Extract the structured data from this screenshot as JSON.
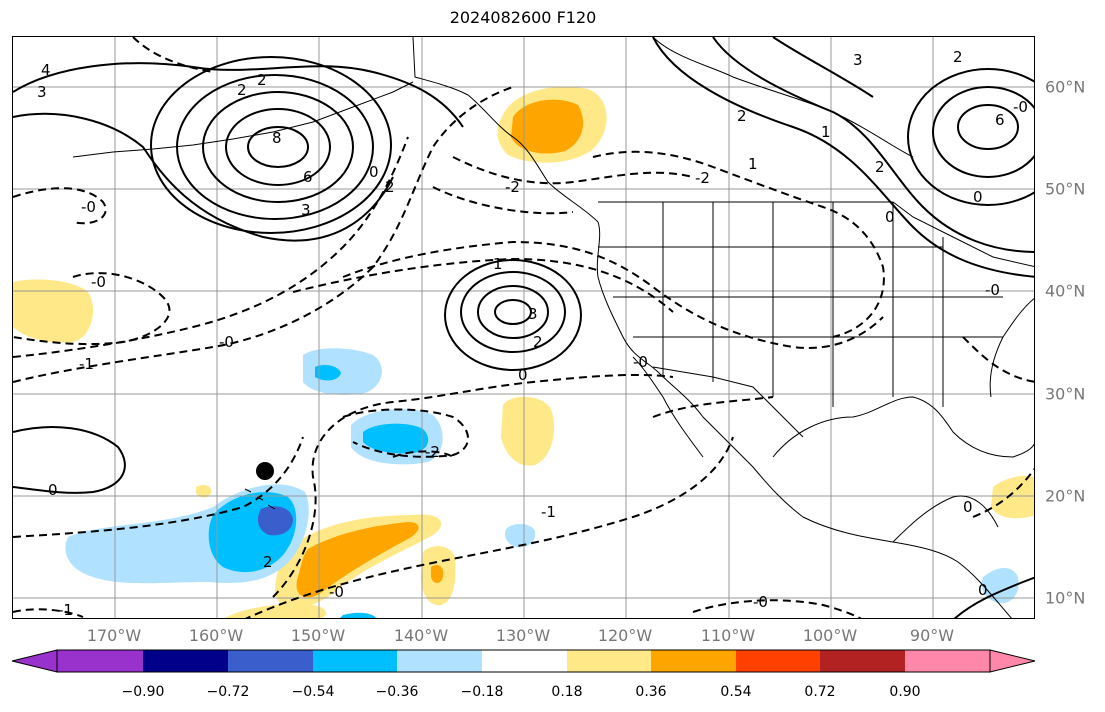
{
  "title": "2024082600 F120",
  "map": {
    "lon_labels": [
      "170°W",
      "160°W",
      "150°W",
      "140°W",
      "130°W",
      "120°W",
      "110°W",
      "100°W",
      "90°W"
    ],
    "lat_labels": [
      "60°N",
      "50°N",
      "40°N",
      "30°N",
      "20°N",
      "10°N"
    ],
    "gridline_color": "#999999",
    "contour_style": {
      "positive": "solid",
      "negative": "dashed",
      "color": "#000000"
    },
    "contour_labels": [
      "4",
      "3",
      "2",
      "2",
      "8",
      "6",
      "3",
      "0",
      "2",
      "-0",
      "-0",
      "-0",
      "-1",
      "1",
      "3",
      "2",
      "0",
      "-0",
      "0",
      "-2",
      "-2",
      "-1",
      "2",
      "1",
      "-2",
      "2",
      "3",
      "6",
      "2",
      "0",
      "-0",
      "0",
      "-0",
      "-0",
      "-1",
      "2",
      "1",
      "0",
      "0",
      "-0"
    ],
    "marker": "black-dot"
  },
  "colorbar": {
    "colors": [
      "#9932cc",
      "#00008b",
      "#3a5fcd",
      "#00bfff",
      "#b0e2ff",
      "#ffffff",
      "#ffe887",
      "#ffa500",
      "#ff4000",
      "#b22222",
      "#ff88aa"
    ],
    "tick_labels": [
      "−0.90",
      "−0.72",
      "−0.54",
      "−0.36",
      "−0.18",
      "0.18",
      "0.36",
      "0.54",
      "0.72",
      "0.90"
    ],
    "extend": "both"
  }
}
